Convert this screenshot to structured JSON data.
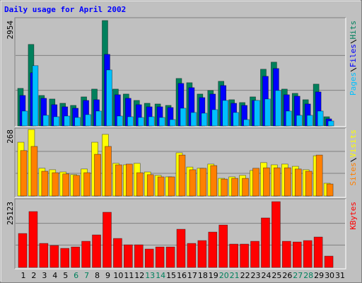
{
  "chart_data": [
    {
      "type": "bar",
      "title": "Daily usage for April 2002",
      "title_color": "#0000ff",
      "ylim": [
        0,
        2954
      ],
      "yticks": [
        2954
      ],
      "grid": true,
      "series": [
        {
          "name": "Hits",
          "color": "#00805c",
          "values": [
            1040,
            2280,
            840,
            740,
            620,
            560,
            800,
            1020,
            2954,
            1020,
            880,
            700,
            620,
            600,
            560,
            1320,
            1200,
            880,
            980,
            1240,
            720,
            640,
            800,
            1580,
            1780,
            1020,
            900,
            720,
            1160,
            240,
            null
          ]
        },
        {
          "name": "Files",
          "color": "#0000ff",
          "values": [
            840,
            1480,
            760,
            580,
            520,
            480,
            700,
            720,
            2000,
            860,
            760,
            580,
            520,
            520,
            500,
            1180,
            1060,
            780,
            880,
            1120,
            620,
            560,
            700,
            1380,
            1600,
            860,
            820,
            600,
            940,
            180,
            null
          ]
        },
        {
          "name": "Pages",
          "color": "#00c0ff",
          "values": [
            400,
            1680,
            280,
            240,
            260,
            220,
            300,
            400,
            1560,
            260,
            240,
            220,
            240,
            220,
            160,
            480,
            360,
            340,
            440,
            700,
            360,
            160,
            700,
            740,
            980,
            400,
            280,
            280,
            400,
            120,
            null
          ]
        }
      ]
    },
    {
      "type": "bar",
      "ylim": [
        0,
        268
      ],
      "yticks": [
        268
      ],
      "grid": true,
      "series": [
        {
          "name": "Visits",
          "color": "#ffff00",
          "values": [
            216,
            268,
            110,
            104,
            95,
            84,
            107,
            216,
            248,
            130,
            124,
            130,
            95,
            81,
            75,
            173,
            115,
            110,
            127,
            69,
            75,
            81,
            101,
            133,
            124,
            127,
            118,
            104,
            161,
            49,
            null
          ]
        },
        {
          "name": "Sites",
          "color": "#ff8000",
          "values": [
            182,
            199,
            98,
            92,
            87,
            81,
            92,
            167,
            199,
            124,
            127,
            92,
            84,
            75,
            75,
            164,
            104,
            110,
            121,
            66,
            69,
            69,
            110,
            112,
            112,
            112,
            107,
            98,
            164,
            46,
            null
          ]
        }
      ]
    },
    {
      "type": "bar",
      "ylim": [
        0,
        25123
      ],
      "yticks": [
        25123
      ],
      "grid": true,
      "categories": [
        "1",
        "2",
        "3",
        "4",
        "5",
        "6",
        "7",
        "8",
        "9",
        "10",
        "11",
        "12",
        "13",
        "14",
        "15",
        "16",
        "17",
        "18",
        "19",
        "20",
        "21",
        "22",
        "23",
        "24",
        "25",
        "26",
        "27",
        "28",
        "29",
        "30",
        "31"
      ],
      "category_colors": [
        "#000000",
        "#000000",
        "#000000",
        "#000000",
        "#000000",
        "#00805c",
        "#00805c",
        "#000000",
        "#000000",
        "#000000",
        "#000000",
        "#000000",
        "#00805c",
        "#00805c",
        "#000000",
        "#000000",
        "#000000",
        "#000000",
        "#000000",
        "#00805c",
        "#00805c",
        "#000000",
        "#000000",
        "#000000",
        "#000000",
        "#000000",
        "#00805c",
        "#00805c",
        "#000000",
        "#000000",
        "#000000"
      ],
      "series": [
        {
          "name": "KBytes",
          "color": "#ff0000",
          "values": [
            12830,
            21300,
            9010,
            8190,
            7100,
            7640,
            9830,
            12290,
            21030,
            10920,
            8460,
            8460,
            6830,
            7640,
            7640,
            14470,
            9010,
            10100,
            13380,
            16110,
            8740,
            8740,
            9830,
            18840,
            25123,
            9830,
            9560,
            10100,
            11470,
            4100,
            null
          ]
        }
      ]
    }
  ]
}
